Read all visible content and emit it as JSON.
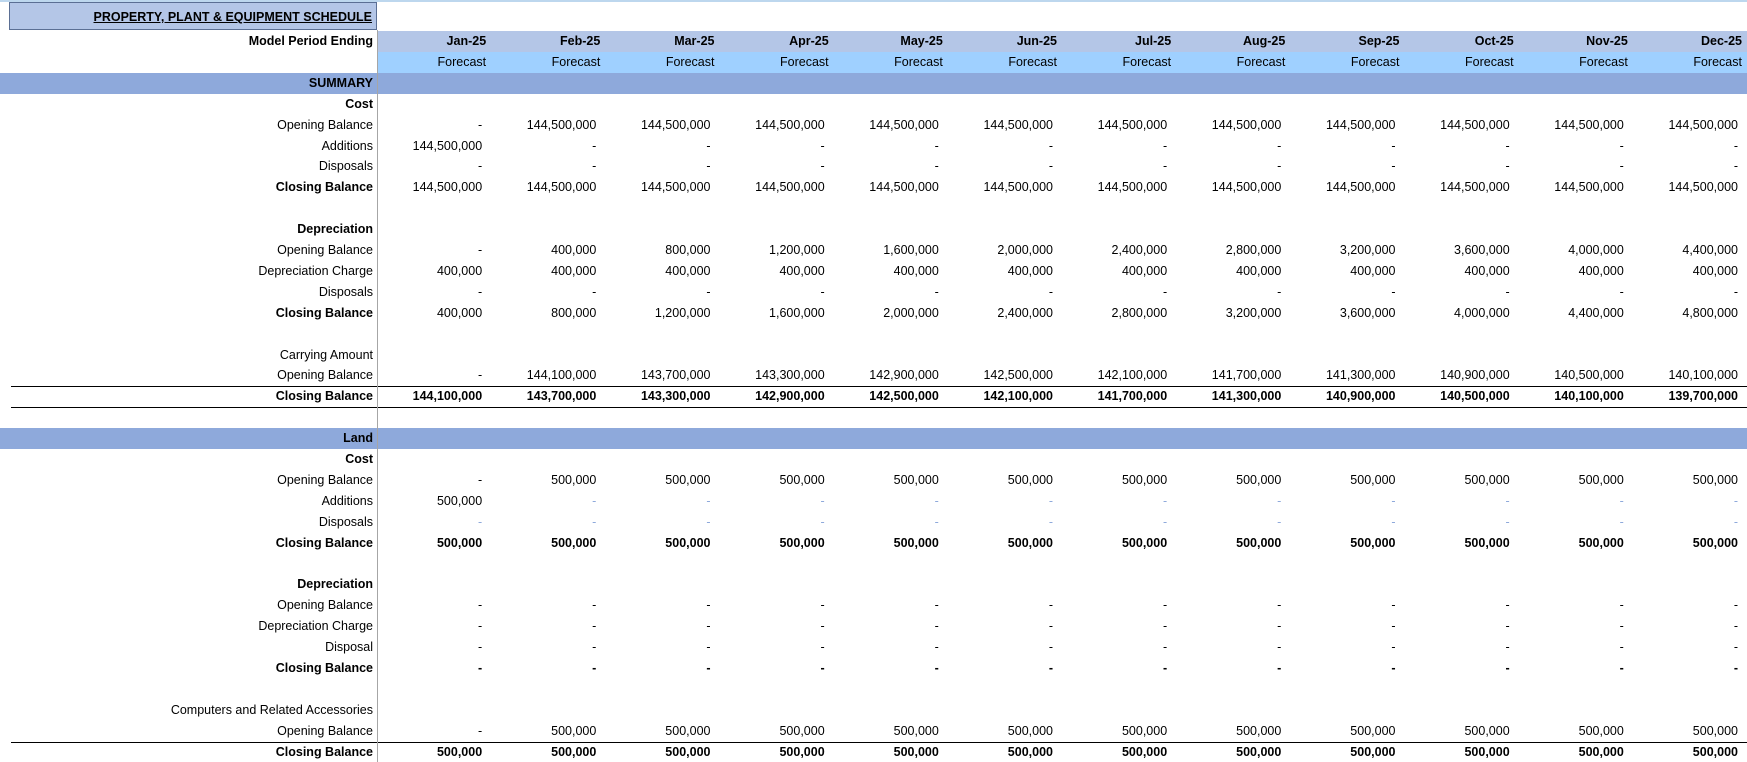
{
  "header": {
    "title": "PROPERTY, PLANT & EQUIPMENT  SCHEDULE",
    "period_label": "Model Period Ending",
    "months": [
      "Jan-25",
      "Feb-25",
      "Mar-25",
      "Apr-25",
      "May-25",
      "Jun-25",
      "Jul-25",
      "Aug-25",
      "Sep-25",
      "Oct-25",
      "Nov-25",
      "Dec-25"
    ],
    "status": [
      "Forecast",
      "Forecast",
      "Forecast",
      "Forecast",
      "Forecast",
      "Forecast",
      "Forecast",
      "Forecast",
      "Forecast",
      "Forecast",
      "Forecast",
      "Forecast"
    ]
  },
  "sections": [
    {
      "title": "SUMMARY",
      "groups": [
        {
          "title": "Cost",
          "rows": [
            {
              "label": "Opening Balance",
              "values": [
                "-",
                "144,500,000",
                "144,500,000",
                "144,500,000",
                "144,500,000",
                "144,500,000",
                "144,500,000",
                "144,500,000",
                "144,500,000",
                "144,500,000",
                "144,500,000",
                "144,500,000"
              ]
            },
            {
              "label": "Additions",
              "values": [
                "144,500,000",
                "-",
                "-",
                "-",
                "-",
                "-",
                "-",
                "-",
                "-",
                "-",
                "-",
                "-"
              ]
            },
            {
              "label": "Disposals",
              "values": [
                "-",
                "-",
                "-",
                "-",
                "-",
                "-",
                "-",
                "-",
                "-",
                "-",
                "-",
                "-"
              ]
            },
            {
              "label": "Closing Balance",
              "values": [
                "144,500,000",
                "144,500,000",
                "144,500,000",
                "144,500,000",
                "144,500,000",
                "144,500,000",
                "144,500,000",
                "144,500,000",
                "144,500,000",
                "144,500,000",
                "144,500,000",
                "144,500,000"
              ]
            }
          ]
        },
        {
          "title": "Depreciation",
          "rows": [
            {
              "label": "Opening Balance",
              "values": [
                "-",
                "400,000",
                "800,000",
                "1,200,000",
                "1,600,000",
                "2,000,000",
                "2,400,000",
                "2,800,000",
                "3,200,000",
                "3,600,000",
                "4,000,000",
                "4,400,000"
              ]
            },
            {
              "label": "Depreciation Charge",
              "values": [
                "400,000",
                "400,000",
                "400,000",
                "400,000",
                "400,000",
                "400,000",
                "400,000",
                "400,000",
                "400,000",
                "400,000",
                "400,000",
                "400,000"
              ]
            },
            {
              "label": "Disposals",
              "values": [
                "-",
                "-",
                "-",
                "-",
                "-",
                "-",
                "-",
                "-",
                "-",
                "-",
                "-",
                "-"
              ]
            },
            {
              "label": "Closing Balance",
              "values": [
                "400,000",
                "800,000",
                "1,200,000",
                "1,600,000",
                "2,000,000",
                "2,400,000",
                "2,800,000",
                "3,200,000",
                "3,600,000",
                "4,000,000",
                "4,400,000",
                "4,800,000"
              ]
            }
          ]
        },
        {
          "title": "Carrying Amount",
          "rows": [
            {
              "label": "Opening Balance",
              "values": [
                "-",
                "144,100,000",
                "143,700,000",
                "143,300,000",
                "142,900,000",
                "142,500,000",
                "142,100,000",
                "141,700,000",
                "141,300,000",
                "140,900,000",
                "140,500,000",
                "140,100,000"
              ]
            },
            {
              "label": "Closing Balance",
              "values": [
                "144,100,000",
                "143,700,000",
                "143,300,000",
                "142,900,000",
                "142,500,000",
                "142,100,000",
                "141,700,000",
                "141,300,000",
                "140,900,000",
                "140,500,000",
                "140,100,000",
                "139,700,000"
              ]
            }
          ]
        }
      ]
    },
    {
      "title": "Land",
      "groups": [
        {
          "title": "Cost",
          "rows": [
            {
              "label": "Opening Balance",
              "values": [
                "-",
                "500,000",
                "500,000",
                "500,000",
                "500,000",
                "500,000",
                "500,000",
                "500,000",
                "500,000",
                "500,000",
                "500,000",
                "500,000"
              ]
            },
            {
              "label": "Additions",
              "values": [
                "500,000",
                "-",
                "-",
                "-",
                "-",
                "-",
                "-",
                "-",
                "-",
                "-",
                "-",
                "-"
              ]
            },
            {
              "label": "Disposals",
              "values": [
                "-",
                "-",
                "-",
                "-",
                "-",
                "-",
                "-",
                "-",
                "-",
                "-",
                "-",
                "-"
              ]
            },
            {
              "label": "Closing Balance",
              "values": [
                "500,000",
                "500,000",
                "500,000",
                "500,000",
                "500,000",
                "500,000",
                "500,000",
                "500,000",
                "500,000",
                "500,000",
                "500,000",
                "500,000"
              ]
            }
          ]
        },
        {
          "title": "Depreciation",
          "rows": [
            {
              "label": "Opening Balance",
              "values": [
                "-",
                "-",
                "-",
                "-",
                "-",
                "-",
                "-",
                "-",
                "-",
                "-",
                "-",
                "-"
              ]
            },
            {
              "label": "Depreciation Charge",
              "values": [
                "-",
                "-",
                "-",
                "-",
                "-",
                "-",
                "-",
                "-",
                "-",
                "-",
                "-",
                "-"
              ]
            },
            {
              "label": "Disposal ",
              "values": [
                "-",
                "-",
                "-",
                "-",
                "-",
                "-",
                "-",
                "-",
                "-",
                "-",
                "-",
                "-"
              ]
            },
            {
              "label": "Closing Balance",
              "values": [
                "-",
                "-",
                "-",
                "-",
                "-",
                "-",
                "-",
                "-",
                "-",
                "-",
                "-",
                "-"
              ]
            }
          ]
        },
        {
          "title": "Computers and Related Accessories",
          "rows": [
            {
              "label": "Opening Balance",
              "values": [
                "-",
                "500,000",
                "500,000",
                "500,000",
                "500,000",
                "500,000",
                "500,000",
                "500,000",
                "500,000",
                "500,000",
                "500,000",
                "500,000"
              ]
            },
            {
              "label": "Closing Balance",
              "values": [
                "500,000",
                "500,000",
                "500,000",
                "500,000",
                "500,000",
                "500,000",
                "500,000",
                "500,000",
                "500,000",
                "500,000",
                "500,000",
                "500,000"
              ]
            }
          ]
        }
      ]
    }
  ]
}
